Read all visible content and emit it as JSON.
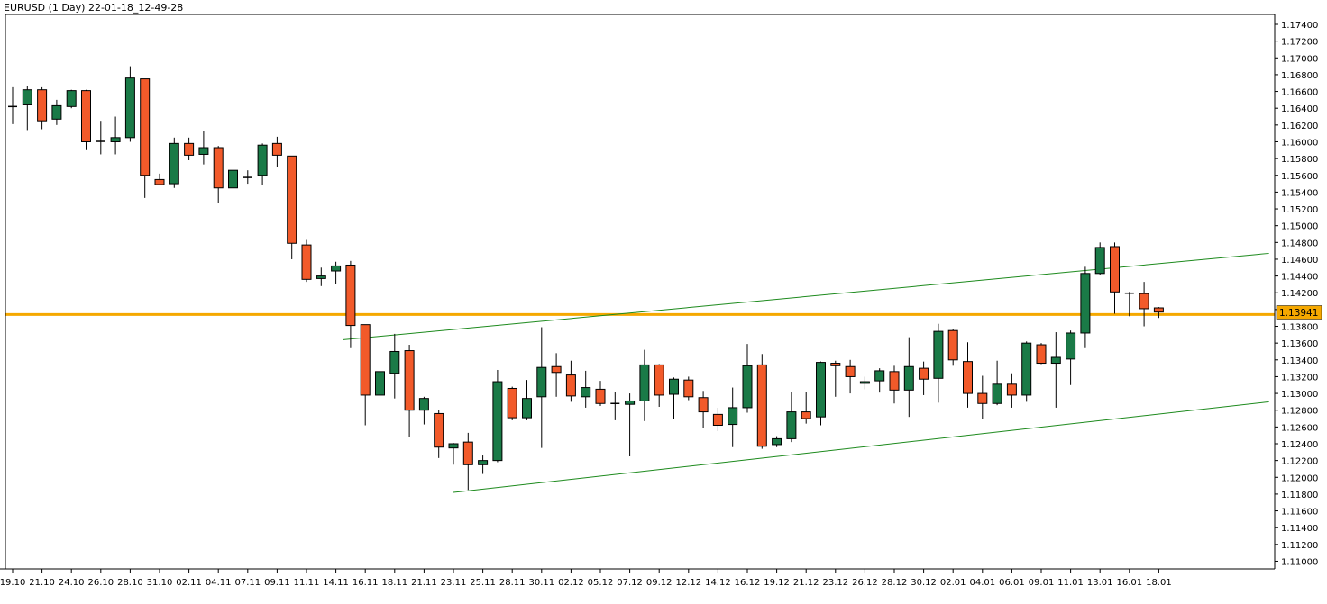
{
  "header": {
    "title": "EURUSD (1 Day) 22-01-18_12-49-28"
  },
  "price_badge": "1.13941",
  "chart_data": {
    "type": "candlestick",
    "symbol": "EURUSD",
    "timeframe": "1 Day",
    "ylim": [
      1.1,
      1.175
    ],
    "y_ticks": [
      "1.17400",
      "1.17200",
      "1.17000",
      "1.16800",
      "1.16600",
      "1.16400",
      "1.16200",
      "1.16000",
      "1.15800",
      "1.15600",
      "1.15400",
      "1.15200",
      "1.15000",
      "1.14800",
      "1.14600",
      "1.14400",
      "1.14200",
      "1.14000",
      "1.13800",
      "1.13600",
      "1.13400",
      "1.13200",
      "1.13000",
      "1.12800",
      "1.12600",
      "1.12400",
      "1.12200",
      "1.12000",
      "1.11800",
      "1.11600",
      "1.11400",
      "1.11200",
      "1.11000"
    ],
    "x_ticks": [
      {
        "label": "19.10",
        "index": 0
      },
      {
        "label": "21.10",
        "index": 2
      },
      {
        "label": "24.10",
        "index": 4
      },
      {
        "label": "26.10",
        "index": 6
      },
      {
        "label": "28.10",
        "index": 8
      },
      {
        "label": "31.10",
        "index": 10
      },
      {
        "label": "02.11",
        "index": 12
      },
      {
        "label": "04.11",
        "index": 14
      },
      {
        "label": "07.11",
        "index": 16
      },
      {
        "label": "09.11",
        "index": 18
      },
      {
        "label": "11.11",
        "index": 20
      },
      {
        "label": "14.11",
        "index": 22
      },
      {
        "label": "16.11",
        "index": 24
      },
      {
        "label": "18.11",
        "index": 26
      },
      {
        "label": "21.11",
        "index": 28
      },
      {
        "label": "23.11",
        "index": 30
      },
      {
        "label": "25.11",
        "index": 32
      },
      {
        "label": "28.11",
        "index": 34
      },
      {
        "label": "30.11",
        "index": 36
      },
      {
        "label": "02.12",
        "index": 38
      },
      {
        "label": "05.12",
        "index": 40
      },
      {
        "label": "07.12",
        "index": 42
      },
      {
        "label": "09.12",
        "index": 44
      },
      {
        "label": "12.12",
        "index": 46
      },
      {
        "label": "14.12",
        "index": 48
      },
      {
        "label": "16.12",
        "index": 50
      },
      {
        "label": "19.12",
        "index": 52
      },
      {
        "label": "21.12",
        "index": 54
      },
      {
        "label": "23.12",
        "index": 56
      },
      {
        "label": "26.12",
        "index": 58
      },
      {
        "label": "28.12",
        "index": 60
      },
      {
        "label": "30.12",
        "index": 62
      },
      {
        "label": "02.01",
        "index": 64
      },
      {
        "label": "04.01",
        "index": 66
      },
      {
        "label": "06.01",
        "index": 68
      },
      {
        "label": "09.01",
        "index": 70
      },
      {
        "label": "11.01",
        "index": 72
      },
      {
        "label": "13.01",
        "index": 74
      },
      {
        "label": "16.01",
        "index": 76
      },
      {
        "label": "18.01",
        "index": 78
      }
    ],
    "candles": [
      [
        1.1642,
        1.1665,
        1.1621,
        1.1642
      ],
      [
        1.1644,
        1.1667,
        1.1614,
        1.1662
      ],
      [
        1.1662,
        1.1665,
        1.1615,
        1.1625
      ],
      [
        1.1627,
        1.165,
        1.162,
        1.1643
      ],
      [
        1.1642,
        1.1662,
        1.164,
        1.1661
      ],
      [
        1.1661,
        1.1662,
        1.159,
        1.16
      ],
      [
        1.16,
        1.1625,
        1.1585,
        1.1601
      ],
      [
        1.16,
        1.163,
        1.1585,
        1.1605
      ],
      [
        1.1605,
        1.169,
        1.16,
        1.1676
      ],
      [
        1.1675,
        1.1675,
        1.1533,
        1.156
      ],
      [
        1.1555,
        1.1562,
        1.1548,
        1.1549
      ],
      [
        1.155,
        1.1605,
        1.1545,
        1.1598
      ],
      [
        1.1598,
        1.1605,
        1.1578,
        1.1584
      ],
      [
        1.1585,
        1.1613,
        1.1573,
        1.1593
      ],
      [
        1.1593,
        1.1595,
        1.1527,
        1.1545
      ],
      [
        1.1545,
        1.1568,
        1.1511,
        1.1566
      ],
      [
        1.1557,
        1.1566,
        1.155,
        1.1558
      ],
      [
        1.156,
        1.1598,
        1.1549,
        1.1596
      ],
      [
        1.1598,
        1.1606,
        1.157,
        1.1584
      ],
      [
        1.1583,
        1.1583,
        1.146,
        1.1479
      ],
      [
        1.1477,
        1.1483,
        1.1433,
        1.1436
      ],
      [
        1.1437,
        1.145,
        1.1428,
        1.144
      ],
      [
        1.1446,
        1.1457,
        1.1431,
        1.1452
      ],
      [
        1.1453,
        1.1458,
        1.1354,
        1.1381
      ],
      [
        1.1382,
        1.1381,
        1.1262,
        1.1298
      ],
      [
        1.1298,
        1.1338,
        1.1288,
        1.1326
      ],
      [
        1.1324,
        1.1371,
        1.1294,
        1.135
      ],
      [
        1.1351,
        1.1358,
        1.1248,
        1.128
      ],
      [
        1.128,
        1.1296,
        1.1263,
        1.1294
      ],
      [
        1.1276,
        1.128,
        1.1223,
        1.1236
      ],
      [
        1.1235,
        1.1241,
        1.1215,
        1.124
      ],
      [
        1.1242,
        1.1253,
        1.1185,
        1.1215
      ],
      [
        1.1215,
        1.1226,
        1.1204,
        1.122
      ],
      [
        1.122,
        1.1328,
        1.1218,
        1.1314
      ],
      [
        1.1306,
        1.1308,
        1.1268,
        1.1271
      ],
      [
        1.1271,
        1.1316,
        1.1268,
        1.1294
      ],
      [
        1.1296,
        1.1379,
        1.1235,
        1.1331
      ],
      [
        1.1332,
        1.1348,
        1.1296,
        1.1325
      ],
      [
        1.1322,
        1.1339,
        1.129,
        1.1297
      ],
      [
        1.1296,
        1.1327,
        1.1283,
        1.1307
      ],
      [
        1.1305,
        1.1315,
        1.1285,
        1.1288
      ],
      [
        1.1288,
        1.1302,
        1.1268,
        1.1288
      ],
      [
        1.1287,
        1.13,
        1.1225,
        1.1291
      ],
      [
        1.1291,
        1.1352,
        1.1267,
        1.1334
      ],
      [
        1.1334,
        1.1335,
        1.1284,
        1.1298
      ],
      [
        1.1299,
        1.1319,
        1.1269,
        1.1317
      ],
      [
        1.1316,
        1.132,
        1.1292,
        1.1296
      ],
      [
        1.1295,
        1.1303,
        1.1259,
        1.1278
      ],
      [
        1.1275,
        1.1283,
        1.1255,
        1.1262
      ],
      [
        1.1263,
        1.1307,
        1.1236,
        1.1283
      ],
      [
        1.1283,
        1.1359,
        1.1277,
        1.1333
      ],
      [
        1.1334,
        1.1347,
        1.1234,
        1.1237
      ],
      [
        1.1239,
        1.1249,
        1.1236,
        1.1246
      ],
      [
        1.1246,
        1.1302,
        1.1242,
        1.1278
      ],
      [
        1.1278,
        1.1302,
        1.1264,
        1.127
      ],
      [
        1.1272,
        1.1338,
        1.1262,
        1.1337
      ],
      [
        1.1336,
        1.1339,
        1.1296,
        1.1333
      ],
      [
        1.1332,
        1.134,
        1.13,
        1.132
      ],
      [
        1.1312,
        1.132,
        1.1305,
        1.1314
      ],
      [
        1.1315,
        1.133,
        1.1301,
        1.1327
      ],
      [
        1.1326,
        1.1333,
        1.1288,
        1.1304
      ],
      [
        1.1304,
        1.1367,
        1.1272,
        1.1332
      ],
      [
        1.133,
        1.1338,
        1.1298,
        1.1317
      ],
      [
        1.1318,
        1.1383,
        1.1289,
        1.1374
      ],
      [
        1.1375,
        1.1377,
        1.1333,
        1.134
      ],
      [
        1.1338,
        1.1361,
        1.1283,
        1.13
      ],
      [
        1.13,
        1.1321,
        1.1269,
        1.1288
      ],
      [
        1.1288,
        1.1339,
        1.1286,
        1.1311
      ],
      [
        1.1311,
        1.1324,
        1.1283,
        1.1298
      ],
      [
        1.1298,
        1.1362,
        1.129,
        1.136
      ],
      [
        1.1358,
        1.136,
        1.1335,
        1.1336
      ],
      [
        1.1336,
        1.1373,
        1.1283,
        1.1343
      ],
      [
        1.1341,
        1.1375,
        1.131,
        1.1372
      ],
      [
        1.1372,
        1.1451,
        1.1354,
        1.1443
      ],
      [
        1.1443,
        1.148,
        1.1441,
        1.1474
      ],
      [
        1.1475,
        1.148,
        1.1395,
        1.1421
      ],
      [
        1.142,
        1.1421,
        1.1392,
        1.1419
      ],
      [
        1.1419,
        1.1433,
        1.138,
        1.1401
      ],
      [
        1.1402,
        1.1403,
        1.139,
        1.1397
      ]
    ],
    "horizontal_line": {
      "price": 1.13941
    },
    "trendlines": [
      {
        "from": {
          "index": 22.5,
          "price": 1.1364
        },
        "to": {
          "index": 85.5,
          "price": 1.1467
        }
      },
      {
        "from": {
          "index": 30.0,
          "price": 1.1182
        },
        "to": {
          "index": 85.5,
          "price": 1.129
        }
      }
    ],
    "colors": {
      "up": "#1a7a47",
      "down": "#f25a2a",
      "outline": "#000000",
      "horizontal_line": "#f5a800",
      "trendline": "#1d8a1d"
    }
  }
}
